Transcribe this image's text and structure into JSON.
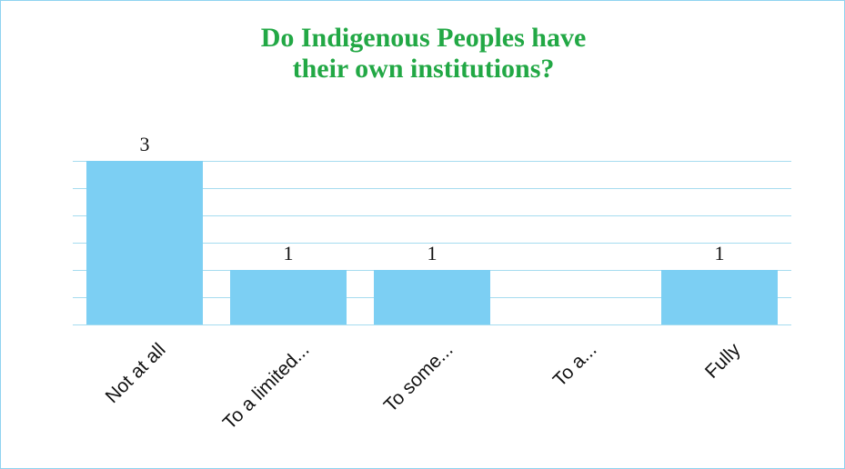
{
  "chart_data": {
    "type": "bar",
    "title": [
      "Do Indigenous Peoples have",
      "their own institutions?"
    ],
    "categories": [
      "Not at all",
      "To a limited...",
      "To some...",
      "To a...",
      "Fully"
    ],
    "values": [
      3,
      1,
      1,
      0,
      1
    ],
    "data_labels": [
      "3",
      "1",
      "1",
      "",
      "1"
    ],
    "ylim": [
      0,
      3.4
    ],
    "grid": true,
    "colors": {
      "bar": "#7ccff3",
      "grid": "#a6dcef",
      "title": "#22a845",
      "text": "#111111"
    }
  }
}
